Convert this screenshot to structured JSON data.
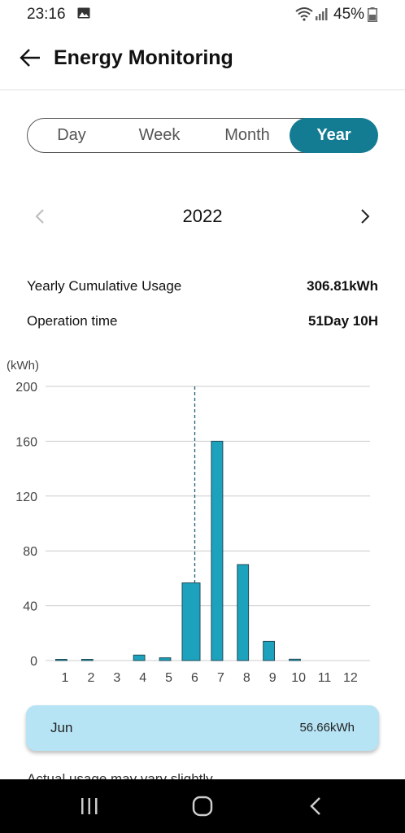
{
  "status_bar": {
    "time": "23:16",
    "battery_percent": "45%",
    "icons": [
      "gallery-icon",
      "wifi-icon",
      "signal-icon",
      "battery-icon"
    ]
  },
  "header": {
    "title": "Energy Monitoring",
    "back_icon": "back-arrow-icon"
  },
  "tabs": [
    {
      "label": "Day",
      "selected": false
    },
    {
      "label": "Week",
      "selected": false
    },
    {
      "label": "Month",
      "selected": false
    },
    {
      "label": "Year",
      "selected": true
    }
  ],
  "period": {
    "label": "2022",
    "prev_icon": "chevron-left-icon",
    "next_icon": "chevron-right-icon"
  },
  "summary": {
    "cumulative_label": "Yearly Cumulative Usage",
    "cumulative_value": "306.81kWh",
    "operation_label": "Operation time",
    "operation_value": "51Day 10H"
  },
  "chart_data": {
    "type": "bar",
    "ylabel": "(kWh)",
    "ylim": [
      0,
      200
    ],
    "yticks": [
      0,
      40,
      80,
      120,
      160,
      200
    ],
    "categories": [
      "1",
      "2",
      "3",
      "4",
      "5",
      "6",
      "7",
      "8",
      "9",
      "10",
      "11",
      "12"
    ],
    "values": [
      0.3,
      0.3,
      0,
      4,
      2,
      56.66,
      160,
      70,
      14,
      1,
      0,
      0
    ],
    "selected_index": 5,
    "grid": true,
    "colors": {
      "bar": "#1da2bd",
      "bar_outline": "#1f4b57",
      "grid": "#cccccc",
      "marker": "#1f5f78"
    }
  },
  "tooltip": {
    "label": "Jun",
    "value": "56.66kWh"
  },
  "footnote": "Actual usage may vary slightly",
  "colors": {
    "accent": "#137c92",
    "tooltip_bg": "#b6e4f4"
  },
  "nav_bar": {
    "icons": [
      "recent-apps-icon",
      "home-icon",
      "back-icon"
    ]
  }
}
